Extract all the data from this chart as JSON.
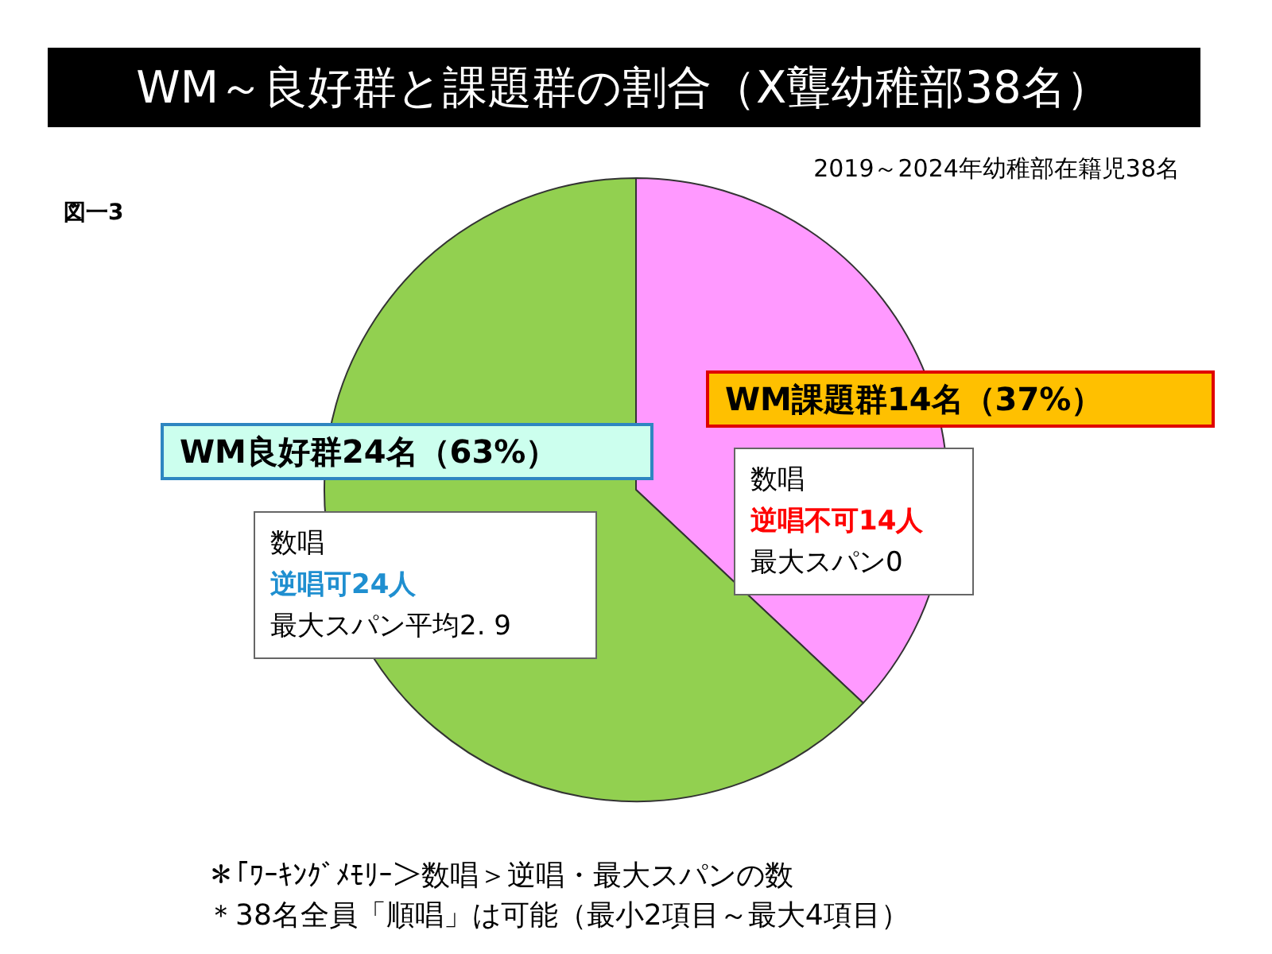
{
  "chart_data": {
    "type": "pie",
    "title": "WM～良好群と課題群の割合（X聾幼稚部38名）",
    "subtitle": "2019～2024年幼稚部在籍児38名",
    "categories": [
      "WM課題群14名",
      "WM良好群24名"
    ],
    "values": [
      37,
      63
    ],
    "value_labels": [
      "（37%）",
      "（63%）"
    ],
    "colors": [
      "#ff99ff",
      "#92d050"
    ],
    "legend": false,
    "annotations": [
      "図一3",
      "数唱",
      "逆唱不可14人",
      "最大スパン0",
      "数唱",
      "逆唱可24人",
      "最大スパン平均2. 9",
      "＊｢ﾜｰｷﾝｸﾞﾒﾓﾘｰ＞数唱＞逆唱・最大スパンの数",
      "＊38名全員「順唱」は可能（最小2項目～最大4項目）"
    ]
  }
}
